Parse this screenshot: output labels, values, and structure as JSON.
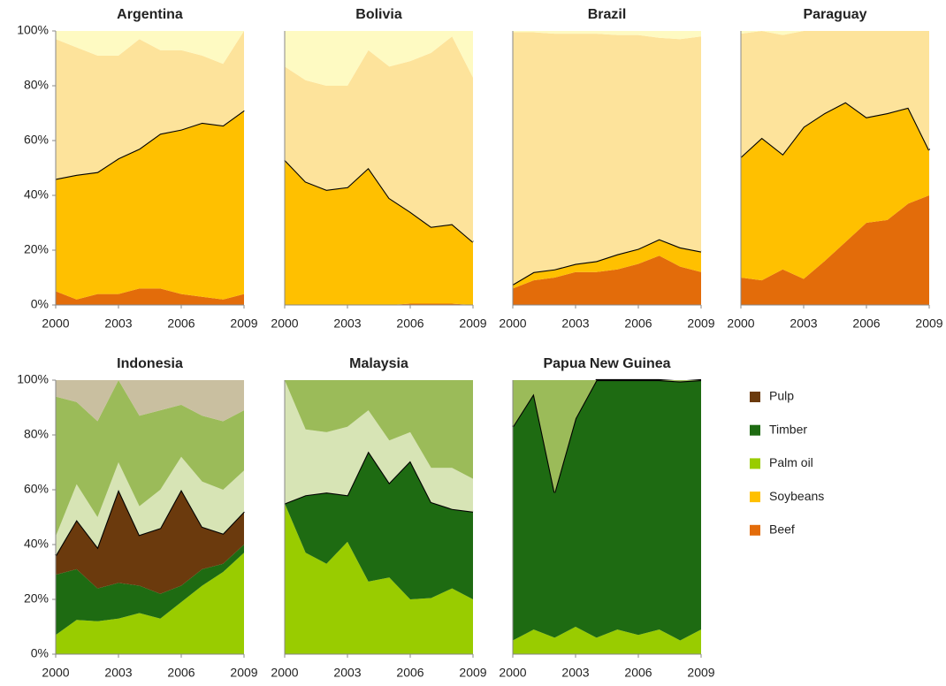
{
  "chart_data": [
    {
      "type": "area",
      "title": "Argentina",
      "x": [
        2000,
        2001,
        2002,
        2003,
        2004,
        2005,
        2006,
        2007,
        2008,
        2009
      ],
      "xlim": [
        2000,
        2009
      ],
      "xticks": [
        2000,
        2003,
        2006,
        2009
      ],
      "ylim": [
        0,
        100
      ],
      "yticks": [
        {
          "value": 0,
          "label": "0%"
        },
        {
          "value": 20,
          "label": "20%"
        },
        {
          "value": 40,
          "label": "40%"
        },
        {
          "value": 60,
          "label": "60%"
        },
        {
          "value": 80,
          "label": "80%"
        },
        {
          "value": 100,
          "label": "100%"
        }
      ],
      "stacked": true,
      "line_on_series": 1,
      "line_color": "#000000",
      "series": [
        {
          "color": "#e36c0a",
          "values": [
            5,
            2,
            4,
            4,
            6,
            6,
            4,
            3,
            2,
            4
          ]
        },
        {
          "color": "#ffc000",
          "values": [
            41,
            45.5,
            44.5,
            49.5,
            51,
            56.5,
            60,
            63.5,
            63.5,
            67
          ]
        },
        {
          "color": "#fde39b",
          "values": [
            51,
            46.5,
            42.5,
            37.5,
            40,
            30.5,
            29,
            24.5,
            22.5,
            29
          ]
        },
        {
          "color": "#fefac2",
          "values": [
            3,
            6,
            9,
            9,
            3,
            7,
            7,
            9,
            12,
            0
          ]
        }
      ]
    },
    {
      "type": "area",
      "title": "Bolivia",
      "x": [
        2000,
        2001,
        2002,
        2003,
        2004,
        2005,
        2006,
        2007,
        2008,
        2009
      ],
      "xlim": [
        2000,
        2009
      ],
      "xticks": [
        2000,
        2003,
        2006,
        2009
      ],
      "ylim": [
        0,
        100
      ],
      "stacked": true,
      "line_on_series": 1,
      "line_color": "#000000",
      "series": [
        {
          "color": "#e36c0a",
          "values": [
            0,
            0,
            0,
            0,
            0,
            0,
            0.5,
            0.5,
            0.5,
            0
          ]
        },
        {
          "color": "#ffc000",
          "values": [
            53,
            45,
            42,
            43,
            50,
            39,
            33.5,
            28,
            29,
            23
          ]
        },
        {
          "color": "#fde39b",
          "values": [
            34,
            37,
            38,
            37,
            43,
            48,
            55,
            63.5,
            68.5,
            60
          ]
        },
        {
          "color": "#fefac2",
          "values": [
            13,
            18,
            20,
            20,
            7,
            13,
            11,
            8,
            2,
            17
          ]
        }
      ]
    },
    {
      "type": "area",
      "title": "Brazil",
      "x": [
        2000,
        2001,
        2002,
        2003,
        2004,
        2005,
        2006,
        2007,
        2008,
        2009
      ],
      "xlim": [
        2000,
        2009
      ],
      "xticks": [
        2000,
        2003,
        2006,
        2009
      ],
      "ylim": [
        0,
        100
      ],
      "stacked": true,
      "line_on_series": 1,
      "line_color": "#000000",
      "series": [
        {
          "color": "#e36c0a",
          "values": [
            6,
            9,
            10,
            12,
            12,
            13,
            15,
            18,
            14,
            12
          ]
        },
        {
          "color": "#ffc000",
          "values": [
            1.5,
            3,
            3,
            3,
            4,
            5.5,
            5.5,
            6,
            7,
            7.5
          ]
        },
        {
          "color": "#fde39b",
          "values": [
            92,
            87.5,
            86,
            84,
            83,
            80,
            78,
            73.5,
            76,
            78.5
          ]
        },
        {
          "color": "#fefac2",
          "values": [
            0.5,
            0.5,
            1,
            1,
            1,
            1.5,
            1.5,
            2.5,
            3,
            2
          ]
        }
      ]
    },
    {
      "type": "area",
      "title": "Paraguay",
      "x": [
        2000,
        2001,
        2002,
        2003,
        2004,
        2005,
        2006,
        2007,
        2008,
        2009
      ],
      "xlim": [
        2000,
        2009
      ],
      "xticks": [
        2000,
        2003,
        2006,
        2009
      ],
      "ylim": [
        0,
        100
      ],
      "stacked": true,
      "line_on_series": 1,
      "line_color": "#000000",
      "series": [
        {
          "color": "#e36c0a",
          "values": [
            10,
            9,
            13,
            9.5,
            16,
            23,
            30,
            31,
            37,
            40
          ]
        },
        {
          "color": "#ffc000",
          "values": [
            44,
            52,
            42,
            55.5,
            54,
            51,
            38.5,
            39,
            35,
            16.5
          ]
        },
        {
          "color": "#fde39b",
          "values": [
            45,
            39,
            43.5,
            35,
            30,
            26,
            31.5,
            30,
            28,
            43.5
          ]
        },
        {
          "color": "#fefac2",
          "values": [
            1,
            0,
            1.5,
            0,
            0,
            0,
            0,
            0,
            0,
            0
          ]
        }
      ]
    },
    {
      "type": "area",
      "title": "Indonesia",
      "x": [
        2000,
        2001,
        2002,
        2003,
        2004,
        2005,
        2006,
        2007,
        2008,
        2009
      ],
      "xlim": [
        2000,
        2009
      ],
      "xticks": [
        2000,
        2003,
        2006,
        2009
      ],
      "ylim": [
        0,
        100
      ],
      "yticks": [
        {
          "value": 0,
          "label": "0%"
        },
        {
          "value": 20,
          "label": "20%"
        },
        {
          "value": 40,
          "label": "40%"
        },
        {
          "value": 60,
          "label": "60%"
        },
        {
          "value": 80,
          "label": "80%"
        },
        {
          "value": 100,
          "label": "100%"
        }
      ],
      "stacked": true,
      "line_on_series": 2,
      "line_color": "#000000",
      "series": [
        {
          "color": "#99cc00",
          "values": [
            7,
            12.5,
            12,
            13,
            15,
            13,
            19,
            25,
            30,
            37
          ]
        },
        {
          "color": "#1e6b12",
          "values": [
            22,
            18.5,
            12,
            13,
            10,
            9,
            6,
            6,
            3,
            3
          ]
        },
        {
          "color": "#6b3a0d",
          "values": [
            7,
            18,
            15,
            34,
            18.5,
            24,
            35,
            15.5,
            11,
            12
          ]
        },
        {
          "color": "#d7e4b5",
          "values": [
            7,
            13,
            11,
            10,
            10.5,
            14,
            12,
            16.5,
            16,
            15
          ]
        },
        {
          "color": "#9bbb59",
          "values": [
            51,
            30,
            35,
            30,
            33,
            29,
            19,
            24,
            25,
            22
          ]
        },
        {
          "color": "#c9bfa0",
          "values": [
            6,
            8,
            15,
            0,
            13,
            11,
            9,
            13,
            15,
            11
          ]
        }
      ]
    },
    {
      "type": "area",
      "title": "Malaysia",
      "x": [
        2000,
        2001,
        2002,
        2003,
        2004,
        2005,
        2006,
        2007,
        2008,
        2009
      ],
      "xlim": [
        2000,
        2009
      ],
      "xticks": [
        2000,
        2003,
        2006,
        2009
      ],
      "ylim": [
        0,
        100
      ],
      "stacked": true,
      "line_on_series": 1,
      "line_color": "#000000",
      "series": [
        {
          "color": "#99cc00",
          "values": [
            55,
            37,
            33,
            41,
            26.5,
            28,
            20,
            20.5,
            24,
            20
          ]
        },
        {
          "color": "#1e6b12",
          "values": [
            0,
            21,
            26,
            17,
            47.5,
            34.5,
            50.5,
            35,
            29,
            32
          ]
        },
        {
          "color": "#d7e4b5",
          "values": [
            45,
            24,
            22,
            25,
            15,
            15.5,
            10.5,
            12.5,
            15,
            12
          ]
        },
        {
          "color": "#9bbb59",
          "values": [
            0,
            18,
            19,
            17,
            11,
            22,
            19,
            32,
            32,
            36
          ]
        }
      ]
    },
    {
      "type": "area",
      "title": "Papua New Guinea",
      "x": [
        2000,
        2001,
        2002,
        2003,
        2004,
        2005,
        2006,
        2007,
        2008,
        2009
      ],
      "xlim": [
        2000,
        2009
      ],
      "xticks": [
        2000,
        2003,
        2006,
        2009
      ],
      "ylim": [
        0,
        100
      ],
      "stacked": true,
      "line_on_series": 1,
      "line_color": "#000000",
      "series": [
        {
          "color": "#99cc00",
          "values": [
            5,
            9,
            6,
            10,
            6,
            9,
            7,
            9,
            5,
            9
          ]
        },
        {
          "color": "#1e6b12",
          "values": [
            78,
            86,
            53,
            76,
            94,
            91,
            93,
            91,
            94.5,
            91
          ]
        },
        {
          "color": "#9bbb59",
          "values": [
            17,
            5,
            41,
            14,
            0,
            0,
            0,
            0,
            0.5,
            0
          ]
        }
      ]
    }
  ],
  "legend": [
    {
      "name": "Pulp",
      "color": "#6b3a0d"
    },
    {
      "name": "Timber",
      "color": "#1e6b12"
    },
    {
      "name": "Palm oil",
      "color": "#99cc00"
    },
    {
      "name": "Soybeans",
      "color": "#ffc000"
    },
    {
      "name": "Beef",
      "color": "#e36c0a"
    }
  ]
}
